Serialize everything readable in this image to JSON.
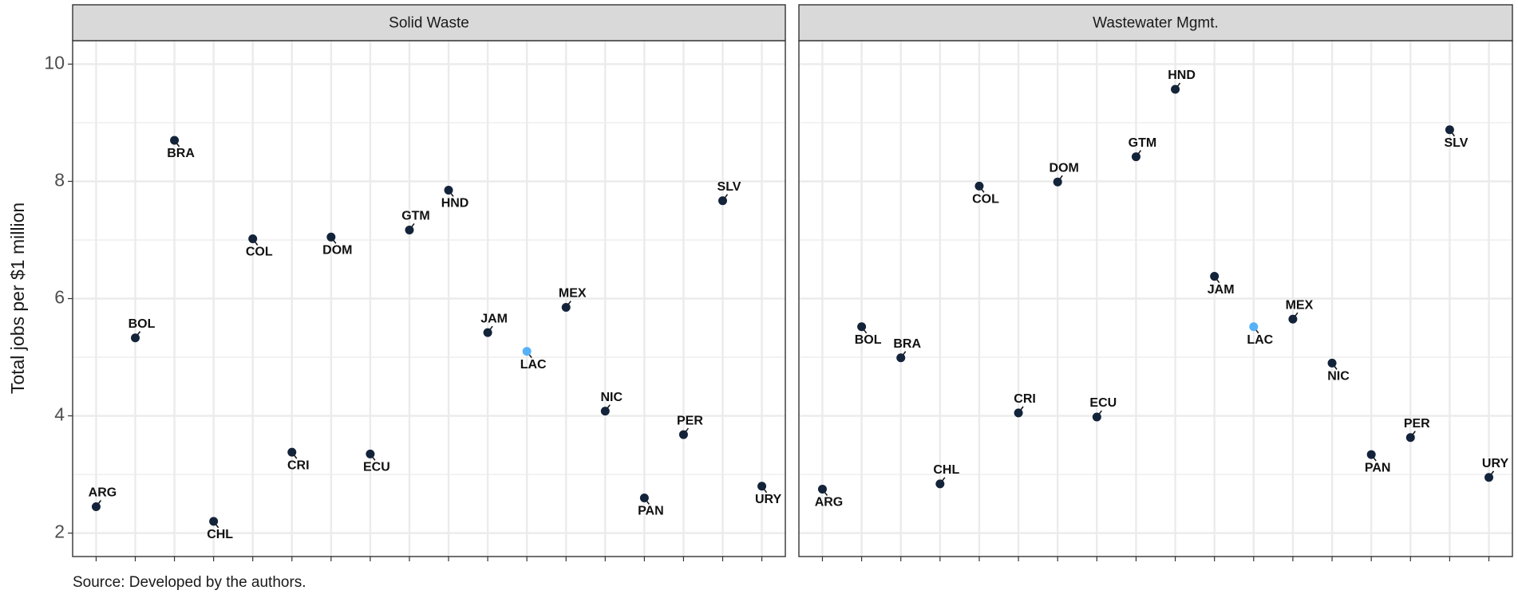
{
  "chart_data": {
    "type": "scatter",
    "y_label": "Total jobs per $1 million",
    "source": "Source: Developed by the authors.",
    "ylim": [
      1.6,
      10.4
    ],
    "yticks": [
      2,
      4,
      6,
      8,
      10
    ],
    "grid": true,
    "categories": [
      "ARG",
      "BOL",
      "BRA",
      "CHL",
      "COL",
      "CRI",
      "DOM",
      "ECU",
      "GTM",
      "HND",
      "JAM",
      "LAC",
      "MEX",
      "NIC",
      "PAN",
      "PER",
      "SLV",
      "URY"
    ],
    "colors": [
      "#13233a",
      "#13233a",
      "#13233a",
      "#13233a",
      "#13233a",
      "#13233a",
      "#13233a",
      "#13233a",
      "#13233a",
      "#13233a",
      "#13233a",
      "#56b1f7",
      "#13233a",
      "#13233a",
      "#13233a",
      "#13233a",
      "#13233a",
      "#13233a"
    ],
    "panels": [
      {
        "title": "Solid Waste",
        "values": [
          2.45,
          5.33,
          8.7,
          2.2,
          7.02,
          3.38,
          7.05,
          3.35,
          7.17,
          7.85,
          5.42,
          5.1,
          5.85,
          4.08,
          2.6,
          3.68,
          7.67,
          2.8
        ]
      },
      {
        "title": "Wastewater Mgmt.",
        "values": [
          2.75,
          5.52,
          4.99,
          2.84,
          7.92,
          4.05,
          7.99,
          3.98,
          8.42,
          9.57,
          6.38,
          5.52,
          5.65,
          4.9,
          3.34,
          3.63,
          8.88,
          2.95
        ]
      }
    ]
  }
}
